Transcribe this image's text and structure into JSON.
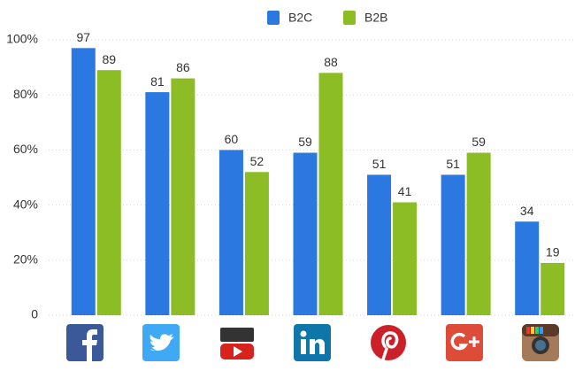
{
  "chart_data": {
    "type": "bar",
    "categories": [
      null,
      null,
      null,
      null,
      null,
      null,
      null
    ],
    "series": [
      {
        "name": "B2C",
        "color": "#2b78e0",
        "values": [
          97,
          81,
          60,
          59,
          51,
          51,
          34
        ]
      },
      {
        "name": "B2B",
        "color": "#8cbd24",
        "values": [
          89,
          86,
          52,
          88,
          41,
          59,
          19
        ]
      }
    ],
    "ylim": [
      0,
      100
    ],
    "yticks": [
      0,
      {
        "value": 20,
        "label": "20%"
      },
      {
        "value": 40,
        "label": "40%"
      },
      {
        "value": 60,
        "label": "60%"
      },
      {
        "value": 80,
        "label": "80%"
      },
      {
        "value": 100,
        "label": "100%"
      }
    ],
    "grid": true,
    "legend": "top"
  }
}
